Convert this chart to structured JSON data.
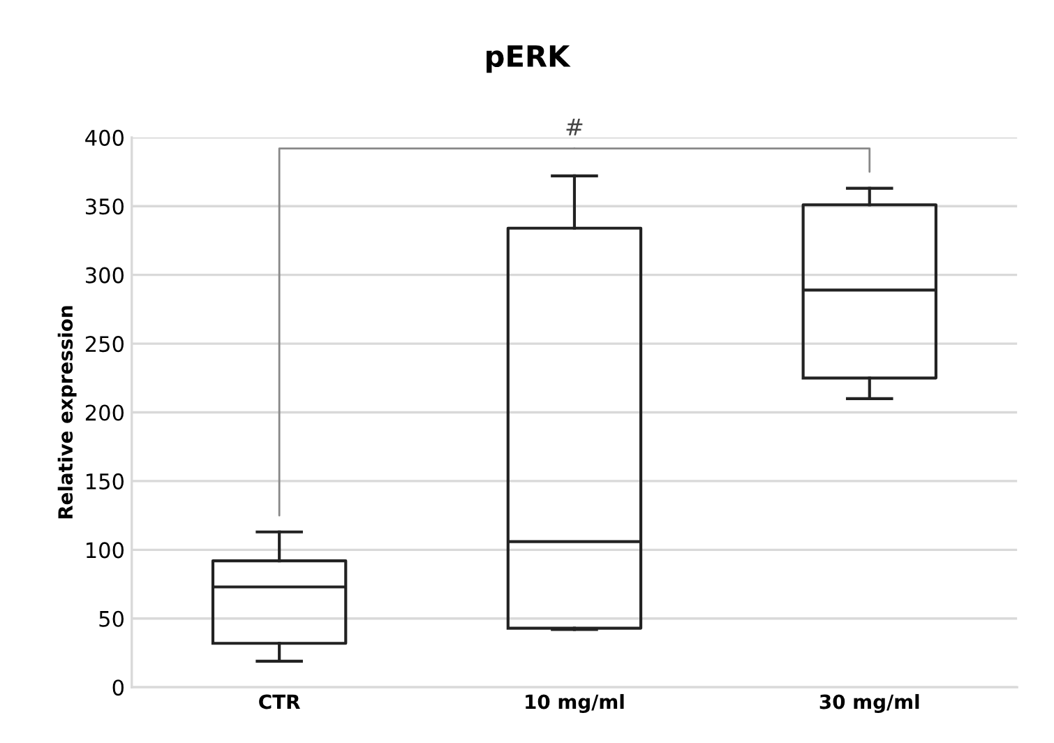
{
  "chart_data": {
    "type": "box",
    "title": "pERK",
    "ylabel": "Relative expression",
    "categories": [
      "CTR",
      "10 mg/ml",
      "30 mg/ml"
    ],
    "boxes": [
      {
        "low": 19,
        "q1": 32,
        "median": 73,
        "q3": 92,
        "high": 113
      },
      {
        "low": 42,
        "q1": 43,
        "median": 106,
        "q3": 334,
        "high": 372
      },
      {
        "low": 210,
        "q1": 225,
        "median": 289,
        "q3": 351,
        "high": 363
      }
    ],
    "ylim": [
      0,
      400
    ],
    "yticks": [
      0,
      50,
      100,
      150,
      200,
      250,
      300,
      350,
      400
    ],
    "grid": "y",
    "annotations": [
      "#"
    ]
  }
}
